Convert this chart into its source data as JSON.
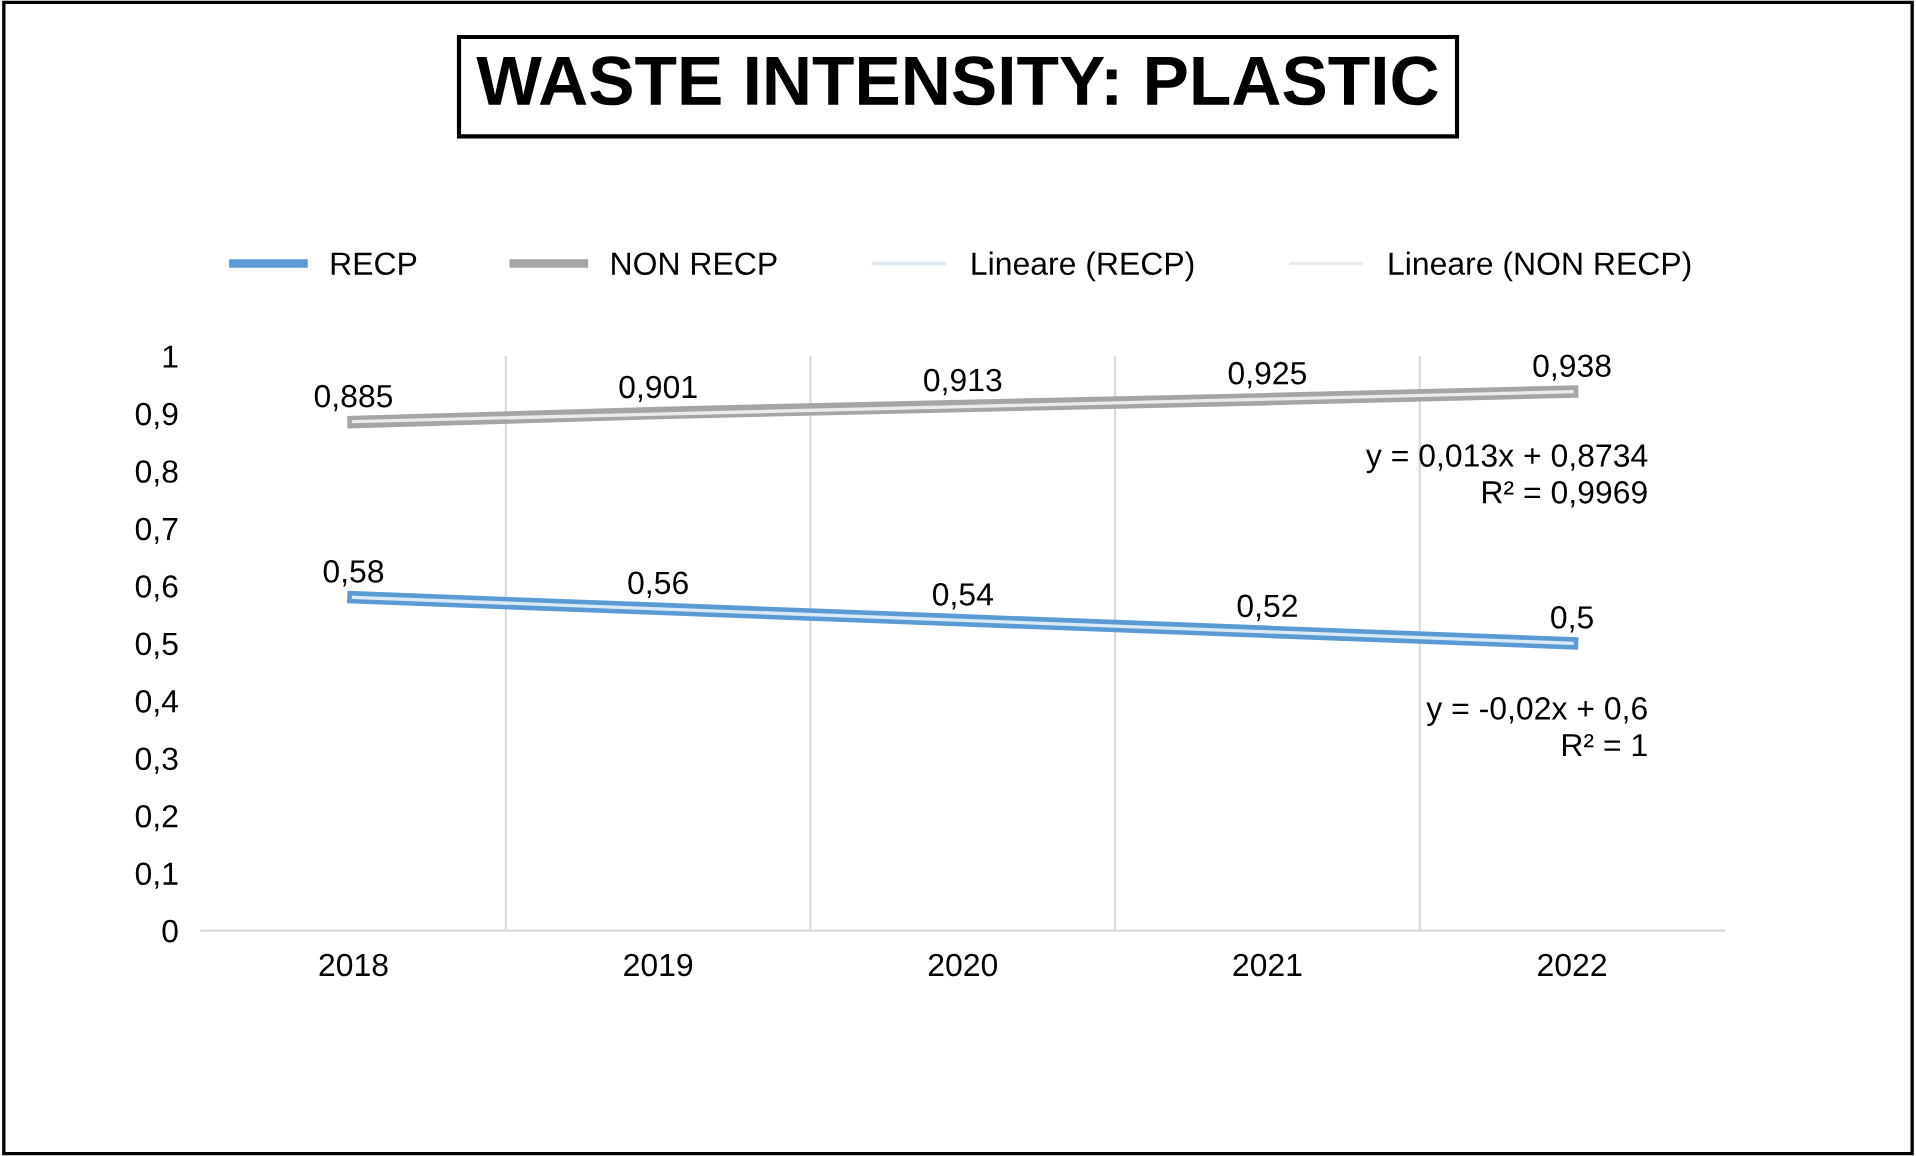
{
  "chart_data": {
    "type": "line",
    "title": "WASTE INTENSITY: PLASTIC",
    "categories": [
      "2018",
      "2019",
      "2020",
      "2021",
      "2022"
    ],
    "series": [
      {
        "name": "RECP",
        "color": "#5b9bd5",
        "values": [
          0.58,
          0.56,
          0.54,
          0.52,
          0.5
        ],
        "value_labels": [
          "0,58",
          "0,56",
          "0,54",
          "0,52",
          "0,5"
        ]
      },
      {
        "name": "NON RECP",
        "color": "#a5a5a5",
        "values": [
          0.885,
          0.901,
          0.913,
          0.925,
          0.938
        ],
        "value_labels": [
          "0,885",
          "0,901",
          "0,913",
          "0,925",
          "0,938"
        ]
      },
      {
        "name": "Lineare (RECP)",
        "color": "#dce9f6",
        "values": [
          0.58,
          0.56,
          0.54,
          0.52,
          0.5
        ]
      },
      {
        "name": "Lineare (NON RECP)",
        "color": "#ebebeb",
        "values": [
          0.886,
          0.899,
          0.912,
          0.925,
          0.938
        ]
      }
    ],
    "ylim": [
      0,
      1
    ],
    "yticks": [
      0,
      {
        "value": 0.1,
        "label": "0,1"
      },
      {
        "value": 0.2,
        "label": "0,2"
      },
      {
        "value": 0.3,
        "label": "0,3"
      },
      {
        "value": 0.4,
        "label": "0,4"
      },
      {
        "value": 0.5,
        "label": "0,5"
      },
      {
        "value": 0.6,
        "label": "0,6"
      },
      {
        "value": 0.7,
        "label": "0,7"
      },
      {
        "value": 0.8,
        "label": "0,8"
      },
      {
        "value": 0.9,
        "label": "0,9"
      },
      1
    ],
    "grid": "x",
    "legend": "top",
    "marker": "none",
    "line_style": "solid",
    "annotations": [
      "y = 0,013x + 0,8734\nR² = 0,9969",
      "y = -0,02x + 0,6\nR² = 1"
    ]
  }
}
